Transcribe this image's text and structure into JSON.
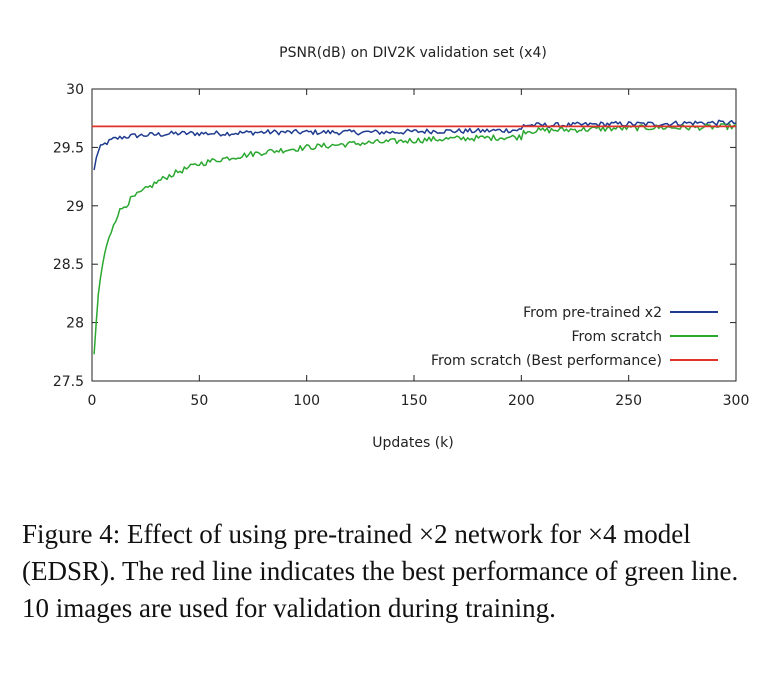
{
  "chart_data": {
    "type": "line",
    "title": "PSNR(dB) on DIV2K validation set (x4)",
    "xlabel": "Updates (k)",
    "ylabel": "",
    "xlim": [
      0,
      300
    ],
    "ylim": [
      27.5,
      30
    ],
    "x_ticks": [
      "0",
      "50",
      "100",
      "150",
      "200",
      "250",
      "300"
    ],
    "y_ticks": [
      "27.5",
      "28",
      "28.5",
      "29",
      "29.5",
      "30"
    ],
    "grid": false,
    "legend_position": "bottom-right",
    "series": [
      {
        "name": "From pre-trained x2",
        "color": "#1f3b8f",
        "x": [
          1,
          2,
          4,
          6,
          8,
          10,
          15,
          20,
          30,
          40,
          50,
          60,
          80,
          100,
          120,
          140,
          160,
          180,
          200,
          201,
          220,
          240,
          260,
          280,
          300
        ],
        "y": [
          29.3,
          29.42,
          29.5,
          29.53,
          29.55,
          29.57,
          29.59,
          29.6,
          29.61,
          29.62,
          29.62,
          29.62,
          29.63,
          29.63,
          29.63,
          29.63,
          29.64,
          29.64,
          29.65,
          29.69,
          29.69,
          29.7,
          29.7,
          29.71,
          29.71
        ]
      },
      {
        "name": "From scratch",
        "color": "#2aa830",
        "x": [
          1,
          2,
          3,
          4,
          5,
          6,
          8,
          10,
          12,
          15,
          20,
          25,
          30,
          35,
          40,
          50,
          60,
          70,
          80,
          100,
          120,
          140,
          160,
          180,
          200,
          201,
          220,
          240,
          260,
          280,
          300
        ],
        "y": [
          27.7,
          28.0,
          28.25,
          28.38,
          28.5,
          28.6,
          28.72,
          28.85,
          28.93,
          29.0,
          29.08,
          29.14,
          29.2,
          29.25,
          29.29,
          29.36,
          29.4,
          29.43,
          29.46,
          29.5,
          29.53,
          29.55,
          29.57,
          29.58,
          29.59,
          29.64,
          29.65,
          29.66,
          29.67,
          29.67,
          29.68
        ]
      },
      {
        "name": "From scratch (Best performance)",
        "color": "#e0312a",
        "x": [
          0,
          300
        ],
        "y": [
          29.68,
          29.68
        ]
      }
    ]
  },
  "caption": "Figure 4: Effect of using pre-trained ×2 network for ×4 model (EDSR). The red line indicates the best performance of green line. 10 images are used for validation during training."
}
